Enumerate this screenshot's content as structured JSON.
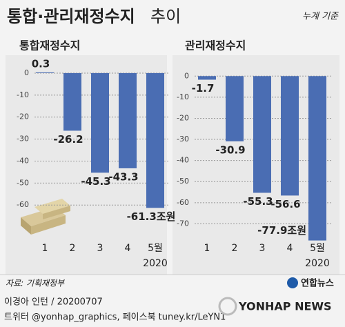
{
  "title_main": "통합·관리재정수지",
  "title_suffix": "추이",
  "note": "누계 기준",
  "chart_data": [
    {
      "type": "bar",
      "subtitle": "통합재정수지",
      "categories": [
        "1",
        "2",
        "3",
        "4",
        "5월"
      ],
      "year_label": "2020",
      "values": [
        0.3,
        -26.2,
        -45.3,
        -43.3,
        -61.3
      ],
      "value_labels": [
        "0.3",
        "-26.2",
        "-45.3",
        "-43.3",
        "-61.3조원"
      ],
      "color": "#4a6db3",
      "ylim": [
        -75,
        5
      ],
      "yticks": [
        0,
        -10,
        -20,
        -30,
        -40,
        -50,
        -60
      ],
      "grid": true
    },
    {
      "type": "bar",
      "subtitle": "관리재정수지",
      "categories": [
        "1",
        "2",
        "3",
        "4",
        "5월"
      ],
      "year_label": "2020",
      "values": [
        -1.7,
        -30.9,
        -55.3,
        -56.6,
        -77.9
      ],
      "value_labels": [
        "-1.7",
        "-30.9",
        "-55.3",
        "-56.6",
        "-77.9조원"
      ],
      "color": "#4a6db3",
      "ylim": [
        -80,
        5
      ],
      "yticks": [
        0,
        -10,
        -20,
        -30,
        -40,
        -50,
        -60,
        -70
      ],
      "grid": true
    }
  ],
  "footer": {
    "source": "자료: 기획재정부",
    "brand": "연합뉴스",
    "credit": "이경아 인턴 / 20200707",
    "sns": "트위터 @yonhap_graphics, 페이스북 tuney.kr/LeYN1",
    "logo": "YONHAP NEWS"
  }
}
